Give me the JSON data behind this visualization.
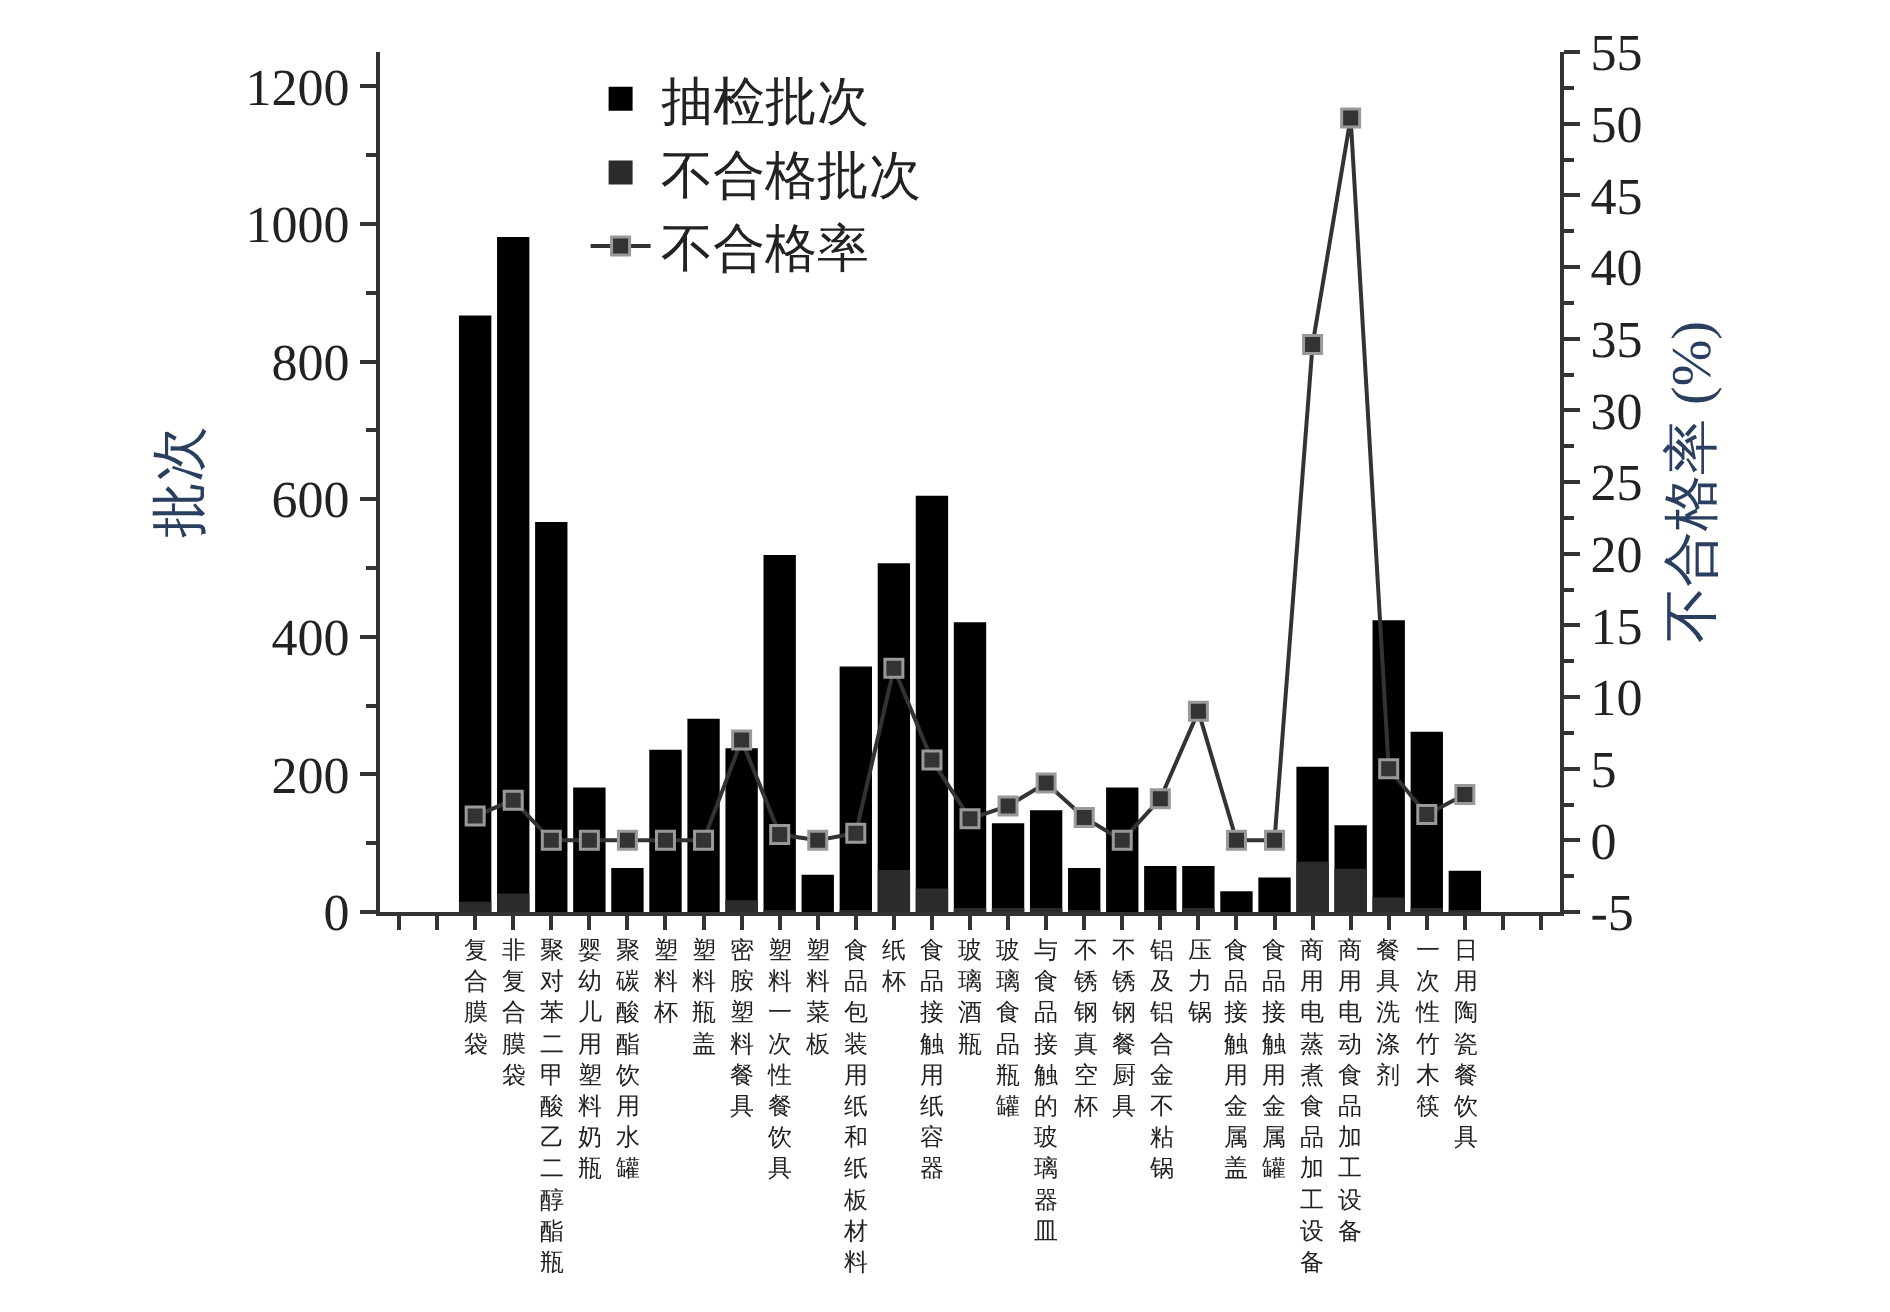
{
  "chart_data": {
    "type": "bar",
    "categories": [
      null,
      null,
      "复合膜袋",
      "非复合膜袋",
      "聚对苯二甲酸乙二醇酯瓶",
      "婴幼儿用塑料奶瓶",
      "聚碳酸酯饮用水罐",
      "塑料杯",
      "塑料瓶盖",
      "密胺塑料餐具",
      "塑料一次性餐饮具",
      "塑料菜板",
      "食品包装用纸和纸板材料",
      "纸杯",
      "食品接触用纸容器",
      "玻璃酒瓶",
      "玻璃食品瓶罐",
      "与食品接触的玻璃器皿",
      "不锈钢真空杯",
      "不锈钢餐厨具",
      "铝及铝合金不粘锅",
      "压力锅",
      "食品接触用金属盖",
      "食品接触用金属罐",
      "商用电蒸煮食品加工设备",
      "商用电动食品加工设备",
      "餐具洗涤剂",
      "一次性竹木筷",
      "日用陶瓷餐饮具",
      null,
      null
    ],
    "series": [
      {
        "name": "抽检批次",
        "color": "#000000",
        "values": [
          null,
          null,
          867,
          981,
          567,
          181,
          64,
          236,
          281,
          238,
          519,
          54,
          357,
          507,
          605,
          421,
          129,
          148,
          64,
          181,
          67,
          67,
          30,
          50,
          211,
          126,
          424,
          262,
          60,
          null,
          null
        ]
      },
      {
        "name": "不合格批次",
        "color": "#2b2b2b",
        "values": [
          null,
          null,
          15,
          27,
          0,
          0,
          0,
          0,
          0,
          17,
          2,
          0,
          2,
          61,
          34,
          6,
          3,
          6,
          1,
          0,
          2,
          6,
          0,
          0,
          73,
          63,
          21,
          5,
          2,
          null,
          null
        ]
      },
      {
        "name": "不合格率",
        "type": "line",
        "axis": "y2",
        "color": "#333333",
        "values": [
          null,
          null,
          1.7,
          2.8,
          0,
          0,
          0,
          0,
          0,
          7.0,
          0.4,
          0,
          0.5,
          12.0,
          5.6,
          1.5,
          2.4,
          4.0,
          1.6,
          0,
          2.9,
          9.0,
          0,
          0,
          34.6,
          50.4,
          5.0,
          1.8,
          3.2,
          null,
          null
        ]
      }
    ],
    "ylabel": "批次",
    "y2label": "不合格率 (%)",
    "ylim": [
      0,
      1250
    ],
    "yticks": [
      0,
      200,
      400,
      600,
      800,
      1000,
      1200
    ],
    "y2lim": [
      -5,
      55
    ],
    "y2ticks": [
      -5,
      0,
      5,
      10,
      15,
      20,
      25,
      30,
      35,
      40,
      45,
      50,
      55
    ],
    "marker": "square",
    "line_style": "solid",
    "legend": "top left"
  }
}
